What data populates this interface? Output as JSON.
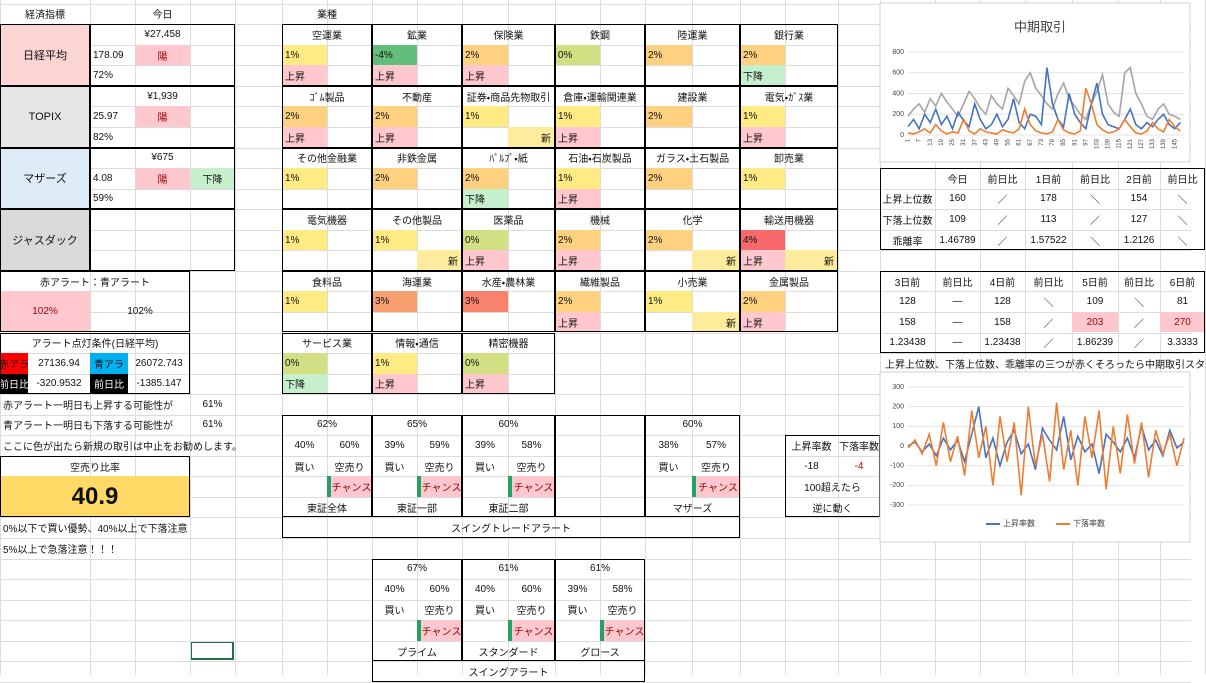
{
  "indices": {
    "header": {
      "label": "経済指標",
      "today": "今日"
    },
    "items": [
      {
        "name": "日経平均",
        "color": "#fbd4d4",
        "price": "¥27,458",
        "change": "178.09",
        "candle": "陽",
        "ratio": "72%"
      },
      {
        "name": "TOPIX",
        "color": "#e7e6e6",
        "price": "¥1,939",
        "change": "25.97",
        "candle": "陽",
        "ratio": "82%"
      },
      {
        "name": "マザーズ",
        "color": "#ddebf7",
        "price": "¥675",
        "change": "4.08",
        "candle": "陽",
        "trend": "下降",
        "trend_color": "#c6efce",
        "ratio": "59%"
      },
      {
        "name": "ジャスダック",
        "color": "#d9d9d9"
      }
    ]
  },
  "alerts": {
    "title": "赤アラート：青アラート",
    "red": "102%",
    "blue": "102%",
    "condition_title": "アラート点灯条件(日経平均)",
    "red_label": "赤アラ",
    "red_value": "27136.94",
    "blue_label": "青アラ",
    "blue_value": "26072.743",
    "red_diff_label": "前日比",
    "red_diff": "-320.9532",
    "blue_diff_label": "前日比",
    "blue_diff": "-1385.147",
    "lines": [
      {
        "text": "赤アラート一明日も上昇する可能性が",
        "value": "61%"
      },
      {
        "text": "青アラート一明日も下落する可能性が",
        "value": "61%"
      }
    ],
    "note": "ここに色が出たら新規の取引は中止をお勧めします。"
  },
  "short_ratio": {
    "title": "空売り比率",
    "value": "40.9",
    "notes": [
      "0%以下で買い優勢、40%以上で下落注意",
      "5%以上で急落注意！！！"
    ]
  },
  "sectors": {
    "header": "業種",
    "items": [
      {
        "name": "空運業",
        "pct": "1%",
        "color": "#ffeb84",
        "status": "上昇",
        "status_color": "#ffc7ce"
      },
      {
        "name": "鉱業",
        "pct": "-4%",
        "color": "#63be7b",
        "status": "上昇",
        "status_color": "#ffc7ce"
      },
      {
        "name": "保険業",
        "pct": "2%",
        "color": "#fdd17f",
        "status": "上昇",
        "status_color": "#ffc7ce"
      },
      {
        "name": "鉄鋼",
        "pct": "0%",
        "color": "#d2df82"
      },
      {
        "name": "陸運業",
        "pct": "2%",
        "color": "#fdd17f"
      },
      {
        "name": "銀行業",
        "pct": "2%",
        "color": "#fdd17f",
        "status": "下降",
        "status_color": "#c6efce"
      },
      {
        "name": "ｺﾞﾑ製品",
        "pct": "2%",
        "color": "#fdd17f",
        "status": "上昇",
        "status_color": "#ffc7ce"
      },
      {
        "name": "不動産",
        "pct": "2%",
        "color": "#fdd17f",
        "status": "上昇",
        "status_color": "#ffc7ce"
      },
      {
        "name": "証券・商品先物取引",
        "pct": "1%",
        "color": "#ffeb84",
        "new": "新"
      },
      {
        "name": "倉庫・運輸関連業",
        "pct": "1%",
        "color": "#ffeb84",
        "status": "上昇",
        "status_color": "#ffc7ce"
      },
      {
        "name": "建設業",
        "pct": "2%",
        "color": "#fdd17f"
      },
      {
        "name": "電気・ｶﾞｽ業",
        "pct": "1%",
        "color": "#ffeb84",
        "status": "上昇",
        "status_color": "#ffc7ce"
      },
      {
        "name": "その他金融業",
        "pct": "1%",
        "color": "#ffeb84"
      },
      {
        "name": "非鉄金属",
        "pct": "2%",
        "color": "#fdd17f"
      },
      {
        "name": "ﾊﾟﾙﾌﾟ・紙",
        "pct": "2%",
        "color": "#fdd17f",
        "status": "下降",
        "status_color": "#c6efce"
      },
      {
        "name": "石油・石炭製品",
        "pct": "1%",
        "color": "#ffeb84",
        "status": "上昇",
        "status_color": "#ffc7ce"
      },
      {
        "name": "ガラス・土石製品",
        "pct": "2%",
        "color": "#fdd17f"
      },
      {
        "name": "卸売業",
        "pct": "1%",
        "color": "#ffeb84"
      },
      {
        "name": "電気機器",
        "pct": "1%",
        "color": "#ffeb84"
      },
      {
        "name": "その他製品",
        "pct": "1%",
        "color": "#ffeb84",
        "new": "新"
      },
      {
        "name": "医薬品",
        "pct": "0%",
        "color": "#d2df82",
        "status": "上昇",
        "status_color": "#ffc7ce"
      },
      {
        "name": "機械",
        "pct": "2%",
        "color": "#fdd17f",
        "status": "上昇",
        "status_color": "#ffc7ce"
      },
      {
        "name": "化学",
        "pct": "2%",
        "color": "#fdd17f",
        "new": "新"
      },
      {
        "name": "輸送用機器",
        "pct": "4%",
        "color": "#f8696b",
        "status": "上昇",
        "status_color": "#ffc7ce",
        "new": "新"
      },
      {
        "name": "食料品",
        "pct": "1%",
        "color": "#ffeb84"
      },
      {
        "name": "海運業",
        "pct": "3%",
        "color": "#f9a070"
      },
      {
        "name": "水産・農林業",
        "pct": "3%",
        "color": "#f8836d"
      },
      {
        "name": "繊維製品",
        "pct": "2%",
        "color": "#fdd17f",
        "status": "上昇",
        "status_color": "#ffc7ce"
      },
      {
        "name": "小売業",
        "pct": "1%",
        "color": "#ffeb84",
        "new": "新"
      },
      {
        "name": "金属製品",
        "pct": "2%",
        "color": "#fdd17f",
        "status": "上昇",
        "status_color": "#ffc7ce"
      },
      {
        "name": "サービス業",
        "pct": "0%",
        "color": "#d2df82",
        "status": "下降",
        "status_color": "#c6efce"
      },
      {
        "name": "情報・通信",
        "pct": "1%",
        "color": "#ffeb84",
        "status": "上昇",
        "status_color": "#ffc7ce"
      },
      {
        "name": "精密機器",
        "pct": "0%",
        "color": "#d2df82",
        "status": "上昇",
        "status_color": "#ffc7ce"
      }
    ]
  },
  "swing": {
    "title": "スイングトレードアラート",
    "blocks": [
      {
        "rate": "62%",
        "buy_pct": "40%",
        "sell_pct": "60%",
        "buy": "買い",
        "sell": "空売り",
        "chance": "チャンス",
        "name": "東証全体"
      },
      {
        "rate": "65%",
        "buy_pct": "39%",
        "sell_pct": "59%",
        "buy": "買い",
        "sell": "空売り",
        "chance": "チャンス",
        "name": "東証一部"
      },
      {
        "rate": "60%",
        "buy_pct": "39%",
        "sell_pct": "58%",
        "buy": "買い",
        "sell": "空売り",
        "chance": "チャンス",
        "name": "東証二部"
      },
      {
        "rate": "60%",
        "buy_pct": "38%",
        "sell_pct": "57%",
        "buy": "買い",
        "sell": "空売り",
        "chance": "チャンス",
        "name": "マザーズ"
      }
    ]
  },
  "swing2": {
    "title": "スイングアラート",
    "blocks": [
      {
        "rate": "67%",
        "buy_pct": "40%",
        "sell_pct": "60%",
        "buy": "買い",
        "sell": "空売り",
        "chance": "チャンス",
        "name": "プライム"
      },
      {
        "rate": "61%",
        "buy_pct": "40%",
        "sell_pct": "60%",
        "buy": "買い",
        "sell": "空売り",
        "chance": "チャンス",
        "name": "スタンダード"
      },
      {
        "rate": "61%",
        "buy_pct": "39%",
        "sell_pct": "58%",
        "buy": "買い",
        "sell": "空売り",
        "chance": "チャンス",
        "name": "グロース"
      }
    ]
  },
  "counter": {
    "headers": [
      "上昇率数",
      "下落率数"
    ],
    "values": [
      "-18",
      "-4"
    ],
    "notes": [
      "100超えたら",
      "逆に動く"
    ]
  },
  "trend_table": {
    "headers": [
      "今日",
      "前日比",
      "1日前",
      "前日比",
      "2日前",
      "前日比"
    ],
    "rows": [
      {
        "label": "上昇上位数",
        "cells": [
          "160",
          "／",
          "178",
          "＼",
          "154",
          "＼"
        ]
      },
      {
        "label": "下落上位数",
        "cells": [
          "109",
          "／",
          "113",
          "／",
          "127",
          "＼"
        ]
      },
      {
        "label": "乖離率",
        "cells": [
          "1.46789",
          "／",
          "1.57522",
          "＼",
          "1.2126",
          "＼"
        ]
      }
    ]
  },
  "trend_table2": {
    "headers": [
      "3日前",
      "前日比",
      "4日前",
      "前日比",
      "5日前",
      "前日比",
      "6日前"
    ],
    "rows": [
      [
        "128",
        "―",
        "128",
        "＼",
        "109",
        "＼",
        "81"
      ],
      [
        "158",
        "―",
        "158",
        "／",
        {
          "text": "203",
          "color": "#ffc7ce"
        },
        "／",
        {
          "text": "270",
          "color": "#ffc7ce"
        }
      ],
      [
        "1.23438",
        "―",
        "1.23438",
        "／",
        "1.86239",
        "／",
        "3.3333"
      ]
    ]
  },
  "trend_note": "上昇上位数、下落上位数、乖離率の三つが赤くそろったら中期取引スタ",
  "chart_data": [
    {
      "type": "line",
      "title": "中期取引",
      "x": [
        1,
        4,
        7,
        10,
        13,
        16,
        19,
        22,
        25,
        28,
        31,
        34,
        37,
        40,
        43,
        46,
        49,
        52,
        55,
        58,
        61,
        64,
        67,
        70,
        73,
        76,
        79,
        82,
        85,
        88,
        91,
        94,
        97,
        100,
        103,
        106,
        109,
        112,
        115,
        118,
        121,
        124,
        127,
        130,
        133,
        136,
        139,
        142,
        145,
        148
      ],
      "xlim": [
        1,
        150
      ],
      "xticks": [
        1,
        7,
        13,
        19,
        25,
        31,
        37,
        43,
        49,
        55,
        61,
        67,
        73,
        79,
        85,
        91,
        97,
        103,
        109,
        115,
        121,
        127,
        133,
        139,
        145
      ],
      "ylim": [
        0,
        800
      ],
      "yticks": [
        0,
        200,
        400,
        600,
        800
      ],
      "grid": true,
      "series": [
        {
          "color": "#a5a5a5",
          "values": [
            180,
            250,
            300,
            220,
            350,
            280,
            400,
            320,
            250,
            180,
            300,
            420,
            350,
            260,
            200,
            380,
            300,
            250,
            450,
            380,
            300,
            520,
            600,
            450,
            380,
            300,
            250,
            400,
            500,
            350,
            280,
            200,
            150,
            300,
            420,
            580,
            300,
            220,
            180,
            600,
            650,
            400,
            300,
            180,
            150,
            250,
            300,
            200,
            180,
            150
          ]
        },
        {
          "color": "#4472c4",
          "values": [
            80,
            150,
            60,
            200,
            120,
            250,
            100,
            180,
            60,
            220,
            140,
            80,
            300,
            150,
            60,
            100,
            200,
            80,
            150,
            350,
            120,
            60,
            200,
            180,
            100,
            650,
            300,
            150,
            80,
            400,
            200,
            120,
            60,
            300,
            500,
            200,
            100,
            80,
            60,
            150,
            250,
            100,
            60,
            120,
            80,
            150,
            200,
            100,
            60,
            120
          ]
        },
        {
          "color": "#ed7d31",
          "values": [
            20,
            10,
            30,
            60,
            20,
            100,
            40,
            10,
            30,
            20,
            150,
            40,
            10,
            60,
            30,
            20,
            10,
            50,
            30,
            20,
            60,
            250,
            100,
            40,
            20,
            10,
            30,
            150,
            50,
            20,
            10,
            40,
            450,
            300,
            100,
            50,
            20,
            30,
            60,
            150,
            80,
            20,
            10,
            40,
            120,
            60,
            30,
            150,
            80,
            40
          ]
        }
      ]
    },
    {
      "type": "line",
      "x": [
        1,
        2,
        3,
        4,
        5,
        6,
        7,
        8,
        9,
        10,
        11,
        12,
        13,
        14,
        15,
        16,
        17,
        18,
        19,
        20,
        21,
        22,
        23,
        24,
        25,
        26,
        27,
        28,
        29,
        30,
        31,
        32,
        33,
        34,
        35,
        36,
        37,
        38,
        39,
        40
      ],
      "xlim": [
        1,
        40
      ],
      "ylim": [
        -300,
        300
      ],
      "yticks": [
        -300,
        -200,
        -100,
        0,
        100,
        200,
        300
      ],
      "grid": true,
      "legend": "bottom",
      "series": [
        {
          "name": "上昇率数",
          "color": "#4472c4",
          "values": [
            0,
            20,
            -30,
            10,
            -50,
            40,
            -20,
            30,
            -80,
            60,
            200,
            -60,
            40,
            -100,
            20,
            80,
            -40,
            10,
            -120,
            90,
            30,
            -20,
            150,
            -70,
            50,
            -30,
            10,
            -140,
            60,
            20,
            -30,
            40,
            -60,
            100,
            -20,
            30,
            -50,
            80,
            -10,
            20
          ]
        },
        {
          "name": "下落率数",
          "color": "#ed7d31",
          "values": [
            -10,
            30,
            -40,
            60,
            -100,
            120,
            -80,
            50,
            -150,
            180,
            -60,
            100,
            -200,
            150,
            -80,
            120,
            -250,
            200,
            -100,
            60,
            -180,
            220,
            -120,
            80,
            -200,
            150,
            -60,
            180,
            -220,
            100,
            -140,
            160,
            -90,
            120,
            -160,
            80,
            -40,
            60,
            -100,
            40
          ]
        }
      ]
    }
  ]
}
